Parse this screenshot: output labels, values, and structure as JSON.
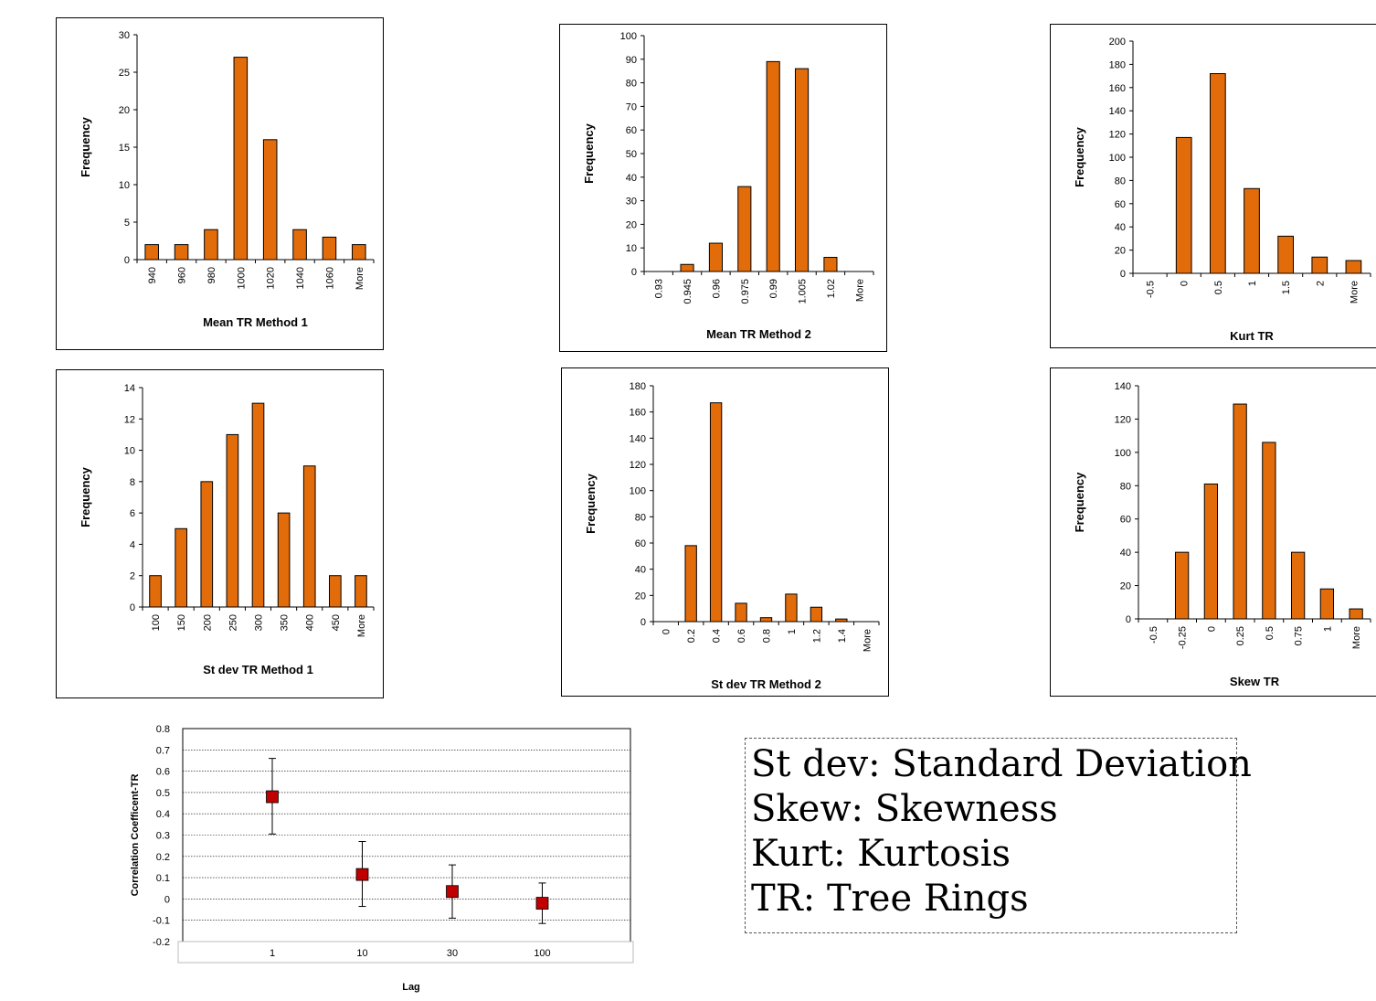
{
  "chart_data": [
    {
      "id": "mean_m1",
      "type": "bar",
      "xlabel": "Mean TR Method 1",
      "ylabel": "Frequency",
      "categories": [
        "940",
        "960",
        "980",
        "1000",
        "1020",
        "1040",
        "1060",
        "More"
      ],
      "values": [
        2,
        2,
        4,
        27,
        16,
        4,
        3,
        2
      ],
      "ylim": [
        0,
        30
      ],
      "yticks": [
        0,
        5,
        10,
        15,
        20,
        25,
        30
      ]
    },
    {
      "id": "mean_m2",
      "type": "bar",
      "xlabel": "Mean TR Method 2",
      "ylabel": "Frequency",
      "categories": [
        "0.93",
        "0.945",
        "0.96",
        "0.975",
        "0.99",
        "1.005",
        "1.02",
        "More"
      ],
      "values": [
        0,
        3,
        12,
        36,
        89,
        86,
        6,
        0
      ],
      "ylim": [
        0,
        100
      ],
      "yticks": [
        0,
        10,
        20,
        30,
        40,
        50,
        60,
        70,
        80,
        90,
        100
      ]
    },
    {
      "id": "kurt",
      "type": "bar",
      "xlabel": "Kurt TR",
      "ylabel": "Frequency",
      "categories": [
        "-0.5",
        "0",
        "0.5",
        "1",
        "1.5",
        "2",
        "More"
      ],
      "values": [
        0,
        117,
        172,
        73,
        32,
        14,
        11
      ],
      "ylim": [
        0,
        200
      ],
      "yticks": [
        0,
        20,
        40,
        60,
        80,
        100,
        120,
        140,
        160,
        180,
        200
      ]
    },
    {
      "id": "sd_m1",
      "type": "bar",
      "xlabel": "St dev TR Method 1",
      "ylabel": "Frequency",
      "categories": [
        "100",
        "150",
        "200",
        "250",
        "300",
        "350",
        "400",
        "450",
        "More"
      ],
      "values": [
        2,
        5,
        8,
        11,
        13,
        6,
        9,
        2,
        2
      ],
      "ylim": [
        0,
        14
      ],
      "yticks": [
        0,
        2,
        4,
        6,
        8,
        10,
        12,
        14
      ]
    },
    {
      "id": "sd_m2",
      "type": "bar",
      "xlabel": "St dev TR Method 2",
      "ylabel": "Frequency",
      "categories": [
        "0",
        "0.2",
        "0.4",
        "0.6",
        "0.8",
        "1",
        "1.2",
        "1.4",
        "More"
      ],
      "values": [
        0,
        58,
        167,
        14,
        3,
        21,
        11,
        2,
        0
      ],
      "ylim": [
        0,
        180
      ],
      "yticks": [
        0,
        20,
        40,
        60,
        80,
        100,
        120,
        140,
        160,
        180
      ]
    },
    {
      "id": "skew",
      "type": "bar",
      "xlabel": "Skew TR",
      "ylabel": "Frequency",
      "categories": [
        "-0.5",
        "-0.25",
        "0",
        "0.25",
        "0.5",
        "0.75",
        "1",
        "More"
      ],
      "values": [
        0,
        40,
        81,
        129,
        106,
        40,
        18,
        6
      ],
      "ylim": [
        0,
        140
      ],
      "yticks": [
        0,
        20,
        40,
        60,
        80,
        100,
        120,
        140
      ]
    },
    {
      "id": "corr",
      "type": "scatter",
      "xlabel": "Lag",
      "ylabel": "Correlation Coefficent-TR",
      "categories": [
        "1",
        "10",
        "30",
        "100"
      ],
      "values": [
        0.48,
        0.115,
        0.035,
        -0.02
      ],
      "error_low": [
        0.305,
        -0.035,
        -0.09,
        -0.115
      ],
      "error_high": [
        0.66,
        0.27,
        0.16,
        0.075
      ],
      "ylim": [
        -0.2,
        0.8
      ],
      "yticks": [
        -0.2,
        -0.1,
        0,
        0.1,
        0.2,
        0.3,
        0.4,
        0.5,
        0.6,
        0.7,
        0.8
      ],
      "grid": true,
      "marker_color": "#C00000"
    }
  ],
  "legend": {
    "lines": [
      "St dev: Standard Deviation",
      "Skew: Skewness",
      "Kurt: Kurtosis",
      "TR: Tree Rings"
    ]
  }
}
